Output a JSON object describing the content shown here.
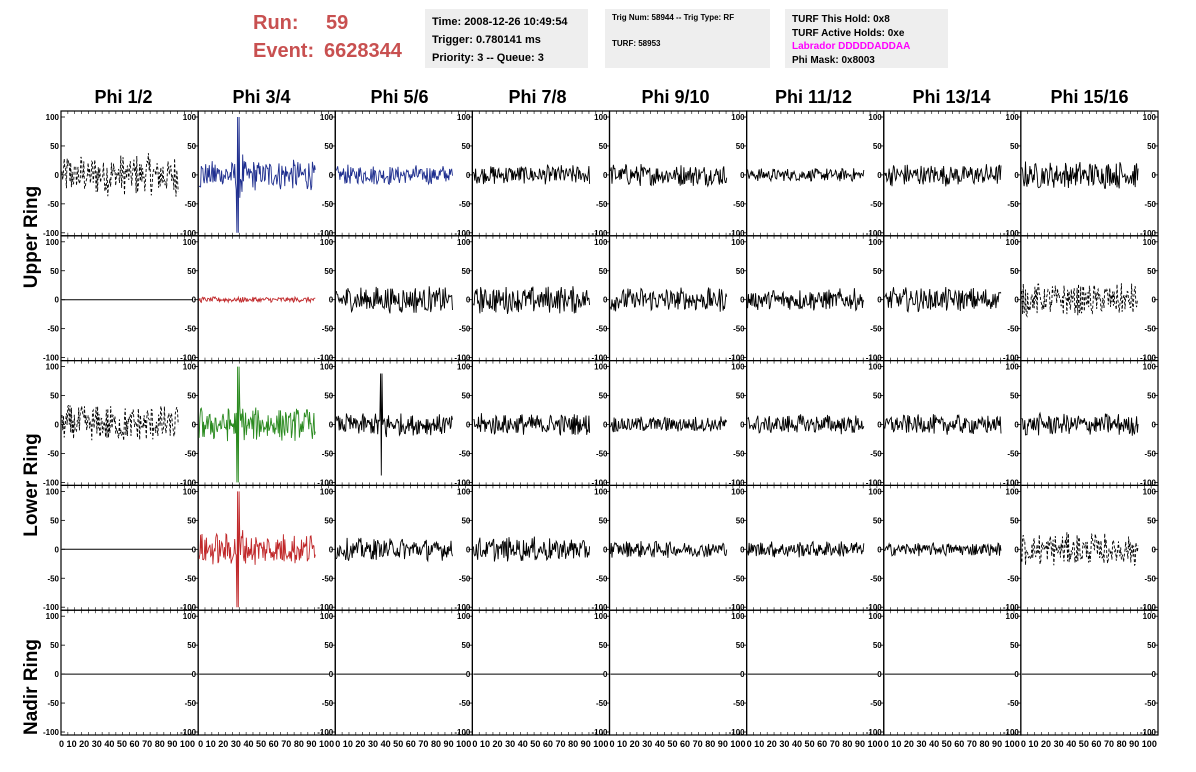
{
  "header": {
    "run_label": "Run:",
    "run_value": "59",
    "event_label": "Event:",
    "event_value": "6628344"
  },
  "info_boxes": {
    "time": "Time: 2008-12-26 10:49:54",
    "trigger": "Trigger: 0.780141 ms",
    "priority": "Priority: 3 -- Queue: 3",
    "trig_num": "Trig Num: 58944 -- Trig Type: RF",
    "turf": "TURF: 58953",
    "turf_hold": "TURF This Hold: 0x8",
    "turf_active": "TURF Active Holds: 0xe",
    "labrador": "Labrador DDDDDADDAA",
    "phi_mask": "Phi Mask: 0x8003"
  },
  "colors": {
    "run_text": "#c85050",
    "labrador_text": "#ff00ff",
    "blue_trace": "#1f2f8f",
    "red_trace": "#c0282a",
    "green_trace": "#2a8a1f",
    "black_trace": "#000000"
  },
  "chart_data": {
    "type": "line",
    "title": "",
    "columns": [
      "Phi 1/2",
      "Phi 3/4",
      "Phi 5/6",
      "Phi 7/8",
      "Phi 9/10",
      "Phi 11/12",
      "Phi 13/14",
      "Phi 15/16"
    ],
    "ring_labels": [
      "Upper Ring",
      "Lower Ring",
      "Nadir Ring"
    ],
    "xlim": [
      0,
      100
    ],
    "ylim": [
      -100,
      100
    ],
    "y_ticks": [
      100,
      50,
      0,
      -50,
      -100
    ],
    "x_tick_text": "0 10 20 30 40 50 60 70 80 90 100",
    "last_x_tick_text": "0 10 20 30 40 50 60 70 80 90 100",
    "panels": [
      [
        {
          "style": "dashed",
          "color": "#000000",
          "amp": 38
        },
        {
          "style": "solid",
          "color": "#1f2f8f",
          "amp": 28,
          "spike": [
            30,
            92
          ]
        },
        {
          "style": "solid",
          "color": "#1f2f8f",
          "amp": 18
        },
        {
          "style": "solid",
          "color": "#000000",
          "amp": 18
        },
        {
          "style": "solid",
          "color": "#000000",
          "amp": 20
        },
        {
          "style": "solid",
          "color": "#000000",
          "amp": 12
        },
        {
          "style": "solid",
          "color": "#000000",
          "amp": 20
        },
        {
          "style": "solid",
          "color": "#000000",
          "amp": 25
        }
      ],
      [
        {
          "style": "flat",
          "color": "#000000",
          "amp": 0
        },
        {
          "style": "solid",
          "color": "#c0282a",
          "amp": 5
        },
        {
          "style": "solid",
          "color": "#000000",
          "amp": 25
        },
        {
          "style": "solid",
          "color": "#000000",
          "amp": 25
        },
        {
          "style": "solid",
          "color": "#000000",
          "amp": 22
        },
        {
          "style": "solid",
          "color": "#000000",
          "amp": 20
        },
        {
          "style": "solid",
          "color": "#000000",
          "amp": 22
        },
        {
          "style": "dashed",
          "color": "#000000",
          "amp": 30
        }
      ],
      [
        {
          "style": "dashed",
          "color": "#000000",
          "amp": 35
        },
        {
          "style": "solid",
          "color": "#2a8a1f",
          "amp": 30,
          "spike": [
            30,
            75
          ]
        },
        {
          "style": "solid",
          "color": "#000000",
          "amp": 20,
          "spike": [
            35,
            55
          ]
        },
        {
          "style": "solid",
          "color": "#000000",
          "amp": 20
        },
        {
          "style": "solid",
          "color": "#000000",
          "amp": 15
        },
        {
          "style": "solid",
          "color": "#000000",
          "amp": 18
        },
        {
          "style": "solid",
          "color": "#000000",
          "amp": 18
        },
        {
          "style": "solid",
          "color": "#000000",
          "amp": 20
        }
      ],
      [
        {
          "style": "flat",
          "color": "#000000",
          "amp": 0
        },
        {
          "style": "solid",
          "color": "#c0282a",
          "amp": 30,
          "spike": [
            30,
            70
          ]
        },
        {
          "style": "solid",
          "color": "#000000",
          "amp": 20
        },
        {
          "style": "solid",
          "color": "#000000",
          "amp": 22
        },
        {
          "style": "solid",
          "color": "#000000",
          "amp": 15
        },
        {
          "style": "solid",
          "color": "#000000",
          "amp": 15
        },
        {
          "style": "solid",
          "color": "#000000",
          "amp": 12
        },
        {
          "style": "dashed",
          "color": "#000000",
          "amp": 30
        }
      ],
      [
        {
          "style": "flat",
          "color": "#000000",
          "amp": 0
        },
        {
          "style": "flat",
          "color": "#000000",
          "amp": 0
        },
        {
          "style": "flat",
          "color": "#000000",
          "amp": 0
        },
        {
          "style": "flat",
          "color": "#000000",
          "amp": 0
        },
        {
          "style": "flat",
          "color": "#000000",
          "amp": 0
        },
        {
          "style": "flat",
          "color": "#000000",
          "amp": 0
        },
        {
          "style": "flat",
          "color": "#000000",
          "amp": 0
        },
        {
          "style": "flat",
          "color": "#000000",
          "amp": 0
        }
      ]
    ]
  }
}
